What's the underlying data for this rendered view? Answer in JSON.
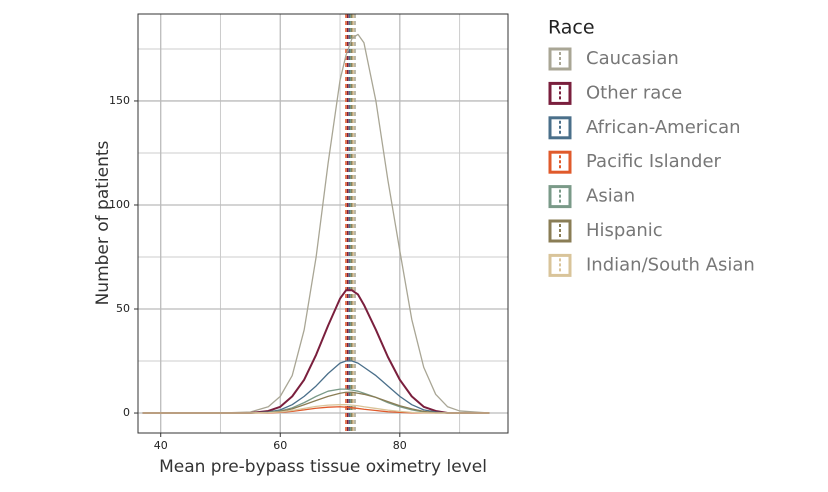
{
  "chart_data": {
    "type": "line",
    "x_label": "Mean pre-bypass tissue oximetry level",
    "y_label": "Number of patients",
    "legend_title": "Race",
    "legend_position": "right",
    "grid": true,
    "xlim": [
      36.2,
      98.1
    ],
    "ylim": [
      -9.6,
      191.8
    ],
    "xticks": [
      40,
      60,
      80
    ],
    "yticks": [
      0,
      50,
      100,
      150
    ],
    "x_minor_ticks": [
      50,
      70,
      90
    ],
    "y_minor_ticks": [
      25,
      75,
      125,
      175
    ],
    "x": [
      37,
      45,
      50,
      55,
      58,
      60,
      62,
      64,
      66,
      68,
      70,
      71,
      72,
      73,
      74,
      76,
      78,
      80,
      82,
      84,
      86,
      88,
      90,
      95
    ],
    "series": [
      {
        "name": "Caucasian",
        "color": "#a9a695",
        "mean": 72.5,
        "values": [
          0,
          0,
          0,
          0.5,
          3,
          8,
          18,
          40,
          75,
          120,
          160,
          172,
          180,
          182,
          178,
          150,
          112,
          78,
          45,
          22,
          9,
          3,
          1,
          0
        ]
      },
      {
        "name": "Other race",
        "color": "#7a1f3d",
        "mean": 71.3,
        "values": [
          0,
          0,
          0,
          0,
          1,
          3,
          8,
          16,
          28,
          42,
          55,
          59,
          59,
          57,
          52,
          40,
          27,
          16,
          8,
          3,
          1,
          0,
          0,
          0
        ]
      },
      {
        "name": "African-American",
        "color": "#4a6f8a",
        "mean": 71.6,
        "values": [
          0,
          0,
          0,
          0,
          0.5,
          1.5,
          4,
          8,
          13,
          19,
          24,
          25,
          25,
          24,
          22,
          18,
          13,
          8,
          4,
          1.5,
          0.5,
          0,
          0,
          0
        ]
      },
      {
        "name": "Pacific Islander",
        "color": "#e05a2b",
        "mean": 71.0,
        "values": [
          0,
          0,
          0,
          0,
          0,
          0.3,
          0.8,
          1.5,
          2.3,
          2.8,
          3,
          2.8,
          2.5,
          2.2,
          1.8,
          1.2,
          0.6,
          0.3,
          0.1,
          0,
          0,
          0,
          0,
          0
        ]
      },
      {
        "name": "Asian",
        "color": "#7a9a88",
        "mean": 71.8,
        "values": [
          0,
          0,
          0,
          0,
          0.3,
          1,
          2.5,
          5,
          8,
          10.5,
          11.5,
          11.5,
          11,
          10.5,
          9.5,
          7.5,
          5,
          3,
          1.5,
          0.5,
          0,
          0,
          0,
          0
        ]
      },
      {
        "name": "Hispanic",
        "color": "#8a7d55",
        "mean": 72.0,
        "values": [
          0,
          0,
          0,
          0,
          0.2,
          0.8,
          2,
          4,
          6,
          8,
          9.5,
          10,
          10,
          9.5,
          9,
          7.5,
          5.5,
          3.5,
          2,
          0.8,
          0.2,
          0,
          0,
          0
        ]
      },
      {
        "name": "Indian/South Asian",
        "color": "#d9c49a",
        "mean": 72.2,
        "values": [
          0,
          0,
          0,
          0,
          0.2,
          0.5,
          1.2,
          2.2,
          3.2,
          3.8,
          4,
          4,
          3.8,
          3.5,
          3,
          2.2,
          1.4,
          0.8,
          0.3,
          0.1,
          0,
          0,
          0,
          0
        ]
      }
    ]
  }
}
